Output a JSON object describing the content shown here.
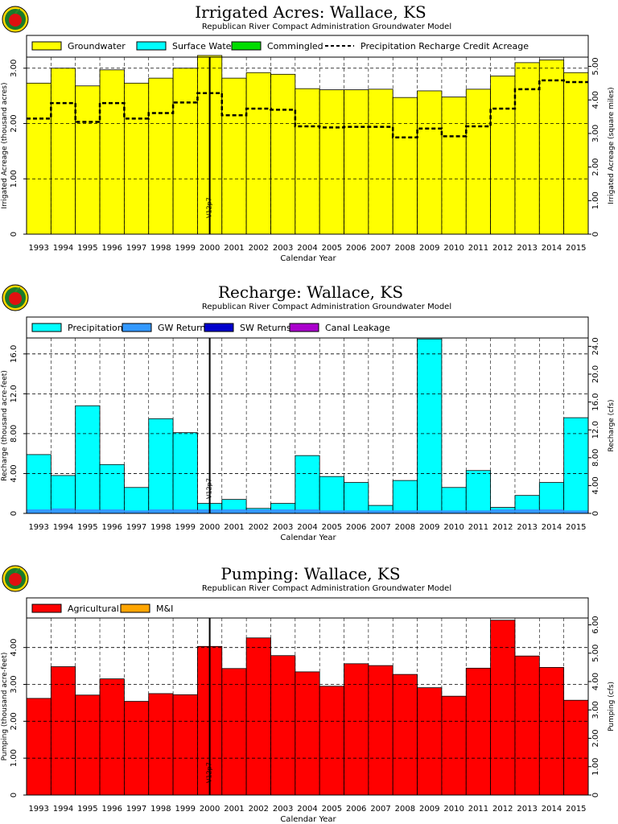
{
  "charts": [
    {
      "title": "Irrigated Acres: Wallace, KS",
      "subtitle": "Republican River Compact Administration Groundwater Model",
      "xlabel": "Calendar Year",
      "ylabel_left": "Irrigated Acreage (thousand acres)",
      "ylabel_right": "Irrigated Acreage (square miles)",
      "marker_label": "V12p7",
      "legend": [
        "Groundwater",
        "Surface Water",
        "Commingled",
        "Precipitation Recharge Credit Acreage"
      ],
      "left_ticks": [
        "0",
        "1.00",
        "2.00",
        "3.00"
      ],
      "right_ticks": [
        "0",
        "1.00",
        "2.00",
        "3.00",
        "4.00",
        "5.00"
      ]
    },
    {
      "title": "Recharge: Wallace, KS",
      "subtitle": "Republican River Compact Administration Groundwater Model",
      "xlabel": "Calendar Year",
      "ylabel_left": "Recharge (thousand acre-feet)",
      "ylabel_right": "Recharge (cfs)",
      "marker_label": "V12p7",
      "legend": [
        "Precipitation",
        "GW Returns",
        "SW Returns",
        "Canal Leakage"
      ],
      "left_ticks": [
        "0",
        "4.00",
        "8.00",
        "12.0",
        "16.0"
      ],
      "right_ticks": [
        "0",
        "4.00",
        "8.00",
        "12.0",
        "16.0",
        "20.0",
        "24.0"
      ]
    },
    {
      "title": "Pumping: Wallace, KS",
      "subtitle": "Republican River Compact Administration Groundwater Model",
      "xlabel": "Calendar Year",
      "ylabel_left": "Pumping (thousand acre-feet)",
      "ylabel_right": "Pumping (cfs)",
      "marker_label": "V12p7",
      "legend": [
        "Agricultural",
        "M&I"
      ],
      "left_ticks": [
        "0",
        "1.00",
        "2.00",
        "3.00",
        "4.00"
      ],
      "right_ticks": [
        "0",
        "1.00",
        "2.00",
        "3.00",
        "4.00",
        "5.00",
        "6.00"
      ]
    }
  ],
  "colors": {
    "groundwater": "#ffff00",
    "surface_water": "#00ffff",
    "commingled": "#00dd00",
    "precipitation": "#00ffff",
    "gw_returns": "#3399ff",
    "sw_returns": "#0000cc",
    "canal_leakage": "#aa00cc",
    "agricultural": "#ff0000",
    "mi": "#ffa500"
  },
  "chart_data": [
    {
      "type": "bar",
      "categories": [
        "1993",
        "1994",
        "1995",
        "1996",
        "1997",
        "1998",
        "1999",
        "2000",
        "2001",
        "2002",
        "2003",
        "2004",
        "2005",
        "2006",
        "2007",
        "2008",
        "2009",
        "2010",
        "2011",
        "2012",
        "2013",
        "2014",
        "2015"
      ],
      "series": [
        {
          "name": "Groundwater",
          "values": [
            2.73,
            3.0,
            2.68,
            2.97,
            2.73,
            2.82,
            3.0,
            3.23,
            2.82,
            2.92,
            2.89,
            2.63,
            2.61,
            2.61,
            2.62,
            2.47,
            2.59,
            2.48,
            2.62,
            2.86,
            3.1,
            3.15,
            2.92
          ]
        },
        {
          "name": "Precipitation Recharge Credit Acreage",
          "values": [
            2.09,
            2.37,
            2.03,
            2.37,
            2.09,
            2.19,
            2.38,
            2.55,
            2.15,
            2.27,
            2.25,
            1.95,
            1.93,
            1.94,
            1.94,
            1.75,
            1.91,
            1.77,
            1.95,
            2.27,
            2.62,
            2.78,
            2.75
          ]
        }
      ],
      "xlabel": "Calendar Year",
      "ylabel": "Irrigated Acreage (thousand acres)",
      "ylim": [
        0,
        3.2
      ]
    },
    {
      "type": "bar",
      "categories": [
        "1993",
        "1994",
        "1995",
        "1996",
        "1997",
        "1998",
        "1999",
        "2000",
        "2001",
        "2002",
        "2003",
        "2004",
        "2005",
        "2006",
        "2007",
        "2008",
        "2009",
        "2010",
        "2011",
        "2012",
        "2013",
        "2014",
        "2015"
      ],
      "series": [
        {
          "name": "Precipitation",
          "values": [
            5.9,
            3.8,
            10.8,
            4.9,
            2.6,
            9.5,
            8.1,
            1.0,
            1.4,
            0.5,
            1.0,
            5.8,
            3.7,
            3.1,
            0.8,
            3.3,
            17.5,
            2.6,
            4.3,
            0.6,
            1.8,
            3.1,
            9.6
          ]
        },
        {
          "name": "GW Returns",
          "values": [
            0.4,
            0.5,
            0.4,
            0.4,
            0.3,
            0.4,
            0.4,
            0.4,
            0.4,
            0.4,
            0.4,
            0.4,
            0.3,
            0.3,
            0.3,
            0.3,
            0.3,
            0.3,
            0.3,
            0.4,
            0.4,
            0.4,
            0.3
          ]
        }
      ],
      "xlabel": "Calendar Year",
      "ylabel": "Recharge (thousand acre-feet)",
      "ylim": [
        0,
        17.6
      ]
    },
    {
      "type": "bar",
      "categories": [
        "1993",
        "1994",
        "1995",
        "1996",
        "1997",
        "1998",
        "1999",
        "2000",
        "2001",
        "2002",
        "2003",
        "2004",
        "2005",
        "2006",
        "2007",
        "2008",
        "2009",
        "2010",
        "2011",
        "2012",
        "2013",
        "2014",
        "2015"
      ],
      "series": [
        {
          "name": "Agricultural",
          "values": [
            2.62,
            3.48,
            2.71,
            3.15,
            2.54,
            2.75,
            2.72,
            4.03,
            3.43,
            4.26,
            3.78,
            3.34,
            2.95,
            3.56,
            3.51,
            3.27,
            2.91,
            2.68,
            3.44,
            4.74,
            3.77,
            3.46,
            2.57
          ]
        }
      ],
      "xlabel": "Calendar Year",
      "ylabel": "Pumping (thousand acre-feet)",
      "ylim": [
        0,
        4.8
      ]
    }
  ]
}
